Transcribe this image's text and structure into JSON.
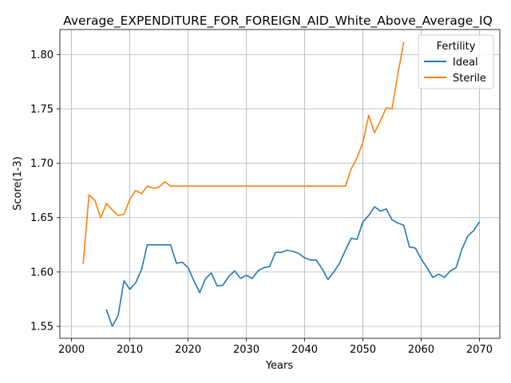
{
  "chart_data": {
    "type": "line",
    "title": "Average_EXPENDITURE_FOR_FOREIGN_AID_White_Above_Average_IQ",
    "xlabel": "Years",
    "ylabel": "Score(1-3)",
    "xlim": [
      1998,
      2073.5
    ],
    "ylim": [
      1.539,
      1.823
    ],
    "xticks": [
      2000,
      2010,
      2020,
      2030,
      2040,
      2050,
      2060,
      2070
    ],
    "yticks": [
      1.55,
      1.6,
      1.65,
      1.7,
      1.75,
      1.8
    ],
    "ytick_labels": [
      "1.55",
      "1.60",
      "1.65",
      "1.70",
      "1.75",
      "1.80"
    ],
    "grid": true,
    "legend": {
      "title": "Fertility",
      "placement": "top-right"
    },
    "series": [
      {
        "name": "Ideal",
        "color": "#1f77b4",
        "x": [
          2006,
          2007,
          2008,
          2009,
          2010,
          2011,
          2012,
          2013,
          2014,
          2015,
          2016,
          2017,
          2018,
          2019,
          2020,
          2021,
          2022,
          2023,
          2024,
          2025,
          2026,
          2027,
          2028,
          2029,
          2030,
          2031,
          2032,
          2033,
          2034,
          2035,
          2036,
          2037,
          2038,
          2039,
          2040,
          2041,
          2042,
          2043,
          2044,
          2045,
          2046,
          2047,
          2048,
          2049,
          2050,
          2051,
          2052,
          2053,
          2054,
          2055,
          2056,
          2057,
          2058,
          2059,
          2060,
          2061,
          2062,
          2063,
          2064,
          2065,
          2066,
          2067,
          2068,
          2069,
          2070
        ],
        "y": [
          1.565,
          1.55,
          1.56,
          1.592,
          1.584,
          1.59,
          1.602,
          1.625,
          1.625,
          1.625,
          1.625,
          1.625,
          1.608,
          1.609,
          1.604,
          1.592,
          1.581,
          1.594,
          1.599,
          1.587,
          1.588,
          1.596,
          1.601,
          1.594,
          1.597,
          1.594,
          1.601,
          1.604,
          1.605,
          1.618,
          1.618,
          1.62,
          1.619,
          1.617,
          1.613,
          1.611,
          1.611,
          1.603,
          1.593,
          1.6,
          1.608,
          1.62,
          1.631,
          1.63,
          1.646,
          1.652,
          1.66,
          1.656,
          1.658,
          1.648,
          1.645,
          1.643,
          1.623,
          1.622,
          1.612,
          1.604,
          1.595,
          1.598,
          1.595,
          1.601,
          1.604,
          1.621,
          1.633,
          1.638,
          1.646
        ]
      },
      {
        "name": "Sterile",
        "color": "#ff7f0e",
        "x": [
          2002,
          2003,
          2004,
          2005,
          2006,
          2007,
          2008,
          2009,
          2010,
          2011,
          2012,
          2013,
          2014,
          2015,
          2016,
          2017,
          2018,
          2019,
          2020,
          2021,
          2022,
          2023,
          2024,
          2025,
          2026,
          2027,
          2028,
          2029,
          2030,
          2031,
          2032,
          2033,
          2034,
          2035,
          2036,
          2037,
          2038,
          2039,
          2040,
          2041,
          2042,
          2043,
          2044,
          2045,
          2046,
          2047,
          2048,
          2049,
          2050,
          2051,
          2052,
          2053,
          2054,
          2055,
          2056,
          2057
        ],
        "y": [
          1.608,
          1.671,
          1.666,
          1.65,
          1.663,
          1.657,
          1.652,
          1.653,
          1.667,
          1.675,
          1.672,
          1.679,
          1.677,
          1.678,
          1.683,
          1.679,
          1.679,
          1.679,
          1.679,
          1.679,
          1.679,
          1.679,
          1.679,
          1.679,
          1.679,
          1.679,
          1.679,
          1.679,
          1.679,
          1.679,
          1.679,
          1.679,
          1.679,
          1.679,
          1.679,
          1.679,
          1.679,
          1.679,
          1.679,
          1.679,
          1.679,
          1.679,
          1.679,
          1.679,
          1.679,
          1.679,
          1.695,
          1.705,
          1.719,
          1.744,
          1.728,
          1.739,
          1.751,
          1.75,
          1.782,
          1.811
        ]
      }
    ]
  }
}
